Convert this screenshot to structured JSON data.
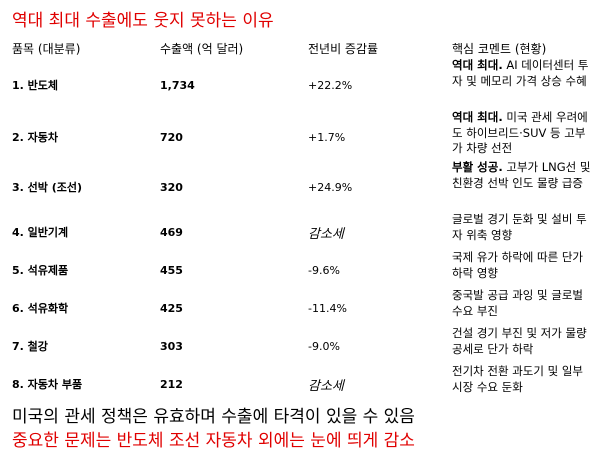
{
  "title": "역대 최대 수출에도 웃지 못하는 이유",
  "table": {
    "headers": [
      "품목 (대분류)",
      "수출액 (억 달러)",
      "전년비 증감률",
      "핵심 코멘트 (현황)"
    ],
    "rows": [
      {
        "item": "1. 반도체",
        "export": "1,734",
        "growth": "+22.2%",
        "comment_lead": "역대 최대.",
        "comment": "AI 데이터센터 투자 및 메모리 가격 상승 수혜"
      },
      {
        "item": "2. 자동차",
        "export": "720",
        "growth": "+1.7%",
        "comment_lead": "역대 최대.",
        "comment": "미국 관세 우려에도 하이브리드·SUV 등 고부가 차량 선전"
      },
      {
        "item": "3. 선박 (조선)",
        "export": "320",
        "growth": "+24.9%",
        "comment_lead": "부활 성공.",
        "comment": "고부가 LNG선 및 친환경 선박 인도 물량 급증"
      },
      {
        "item": "4. 일반기계",
        "export": "469",
        "growth": "감소세",
        "comment": "글로벌 경기 둔화 및 설비 투자 위축 영향"
      },
      {
        "item": "5. 석유제품",
        "export": "455",
        "growth": "-9.6%",
        "comment": "국제 유가 하락에 따른 단가 하락 영향"
      },
      {
        "item": "6. 석유화학",
        "export": "425",
        "growth": "-11.4%",
        "comment": "중국발 공급 과잉 및 글로벌 수요 부진"
      },
      {
        "item": "7. 철강",
        "export": "303",
        "growth": "-9.0%",
        "comment": "건설 경기 부진 및 저가 물량 공세로 단가 하락"
      },
      {
        "item": "8. 자동차 부품",
        "export": "212",
        "growth": "감소세",
        "comment": "전기차 전환 과도기 및 일부 시장 수요 둔화"
      }
    ]
  },
  "footer": [
    "미국의 관세 정책은 유효하며 수출에 타격이 있을 수 있음",
    "중요한 문제는 반도체 조선 자동차 외에는 눈에 띄게 감소"
  ]
}
